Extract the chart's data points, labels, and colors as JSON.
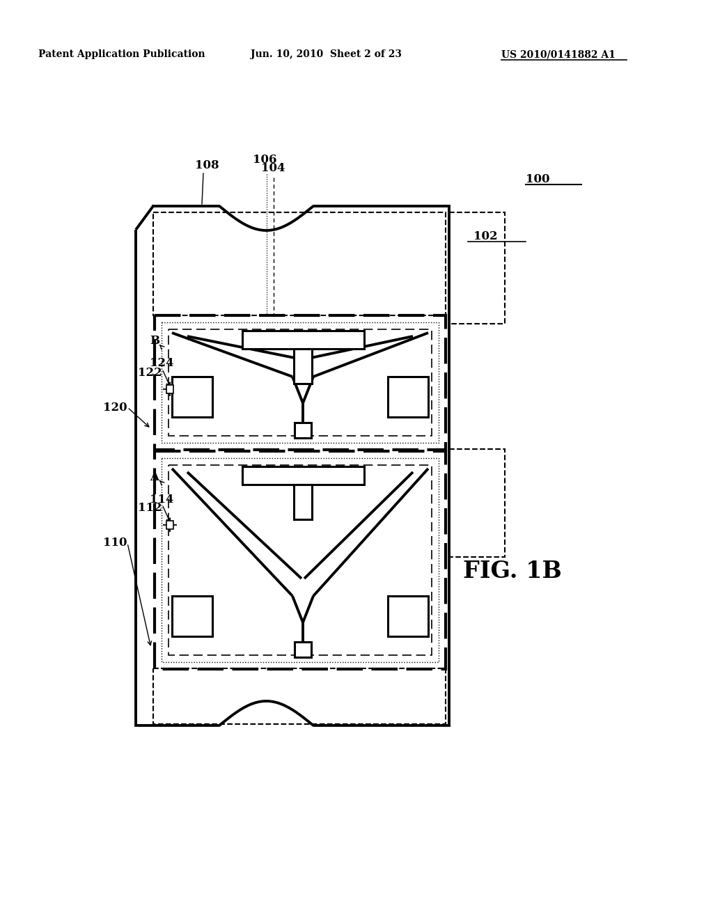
{
  "bg": "#ffffff",
  "header_left": "Patent Application Publication",
  "header_center": "Jun. 10, 2010  Sheet 2 of 23",
  "header_right": "US 2010/0141882 A1",
  "fig_label": "FIG. 1B",
  "lbl_100": "100",
  "lbl_102": "102",
  "lbl_104": "104",
  "lbl_106": "106",
  "lbl_108": "108",
  "lbl_110": "110",
  "lbl_112": "112",
  "lbl_114": "114",
  "lbl_120": "120",
  "lbl_122": "122",
  "lbl_124": "124",
  "lbl_A": "A",
  "lbl_B": "B"
}
